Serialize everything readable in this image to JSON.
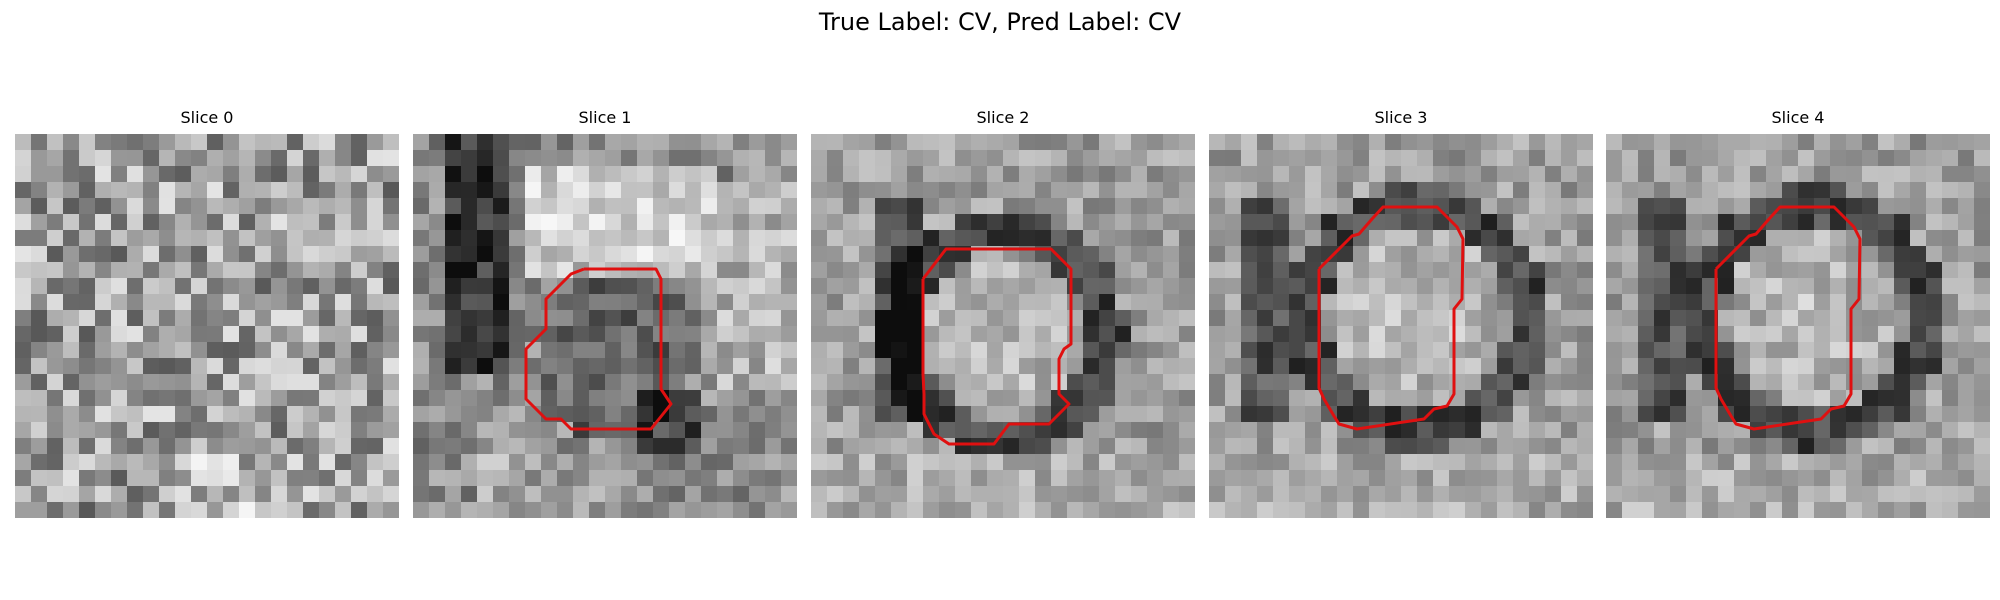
{
  "figure": {
    "title": "True Label: CV, Pred Label: CV"
  },
  "slices": [
    {
      "title": "Slice 0",
      "has_contour": false
    },
    {
      "title": "Slice 1",
      "has_contour": true
    },
    {
      "title": "Slice 2",
      "has_contour": true
    },
    {
      "title": "Slice 3",
      "has_contour": true
    },
    {
      "title": "Slice 4",
      "has_contour": true
    }
  ],
  "colors": {
    "contour": "#e01010",
    "background": "#ffffff"
  }
}
